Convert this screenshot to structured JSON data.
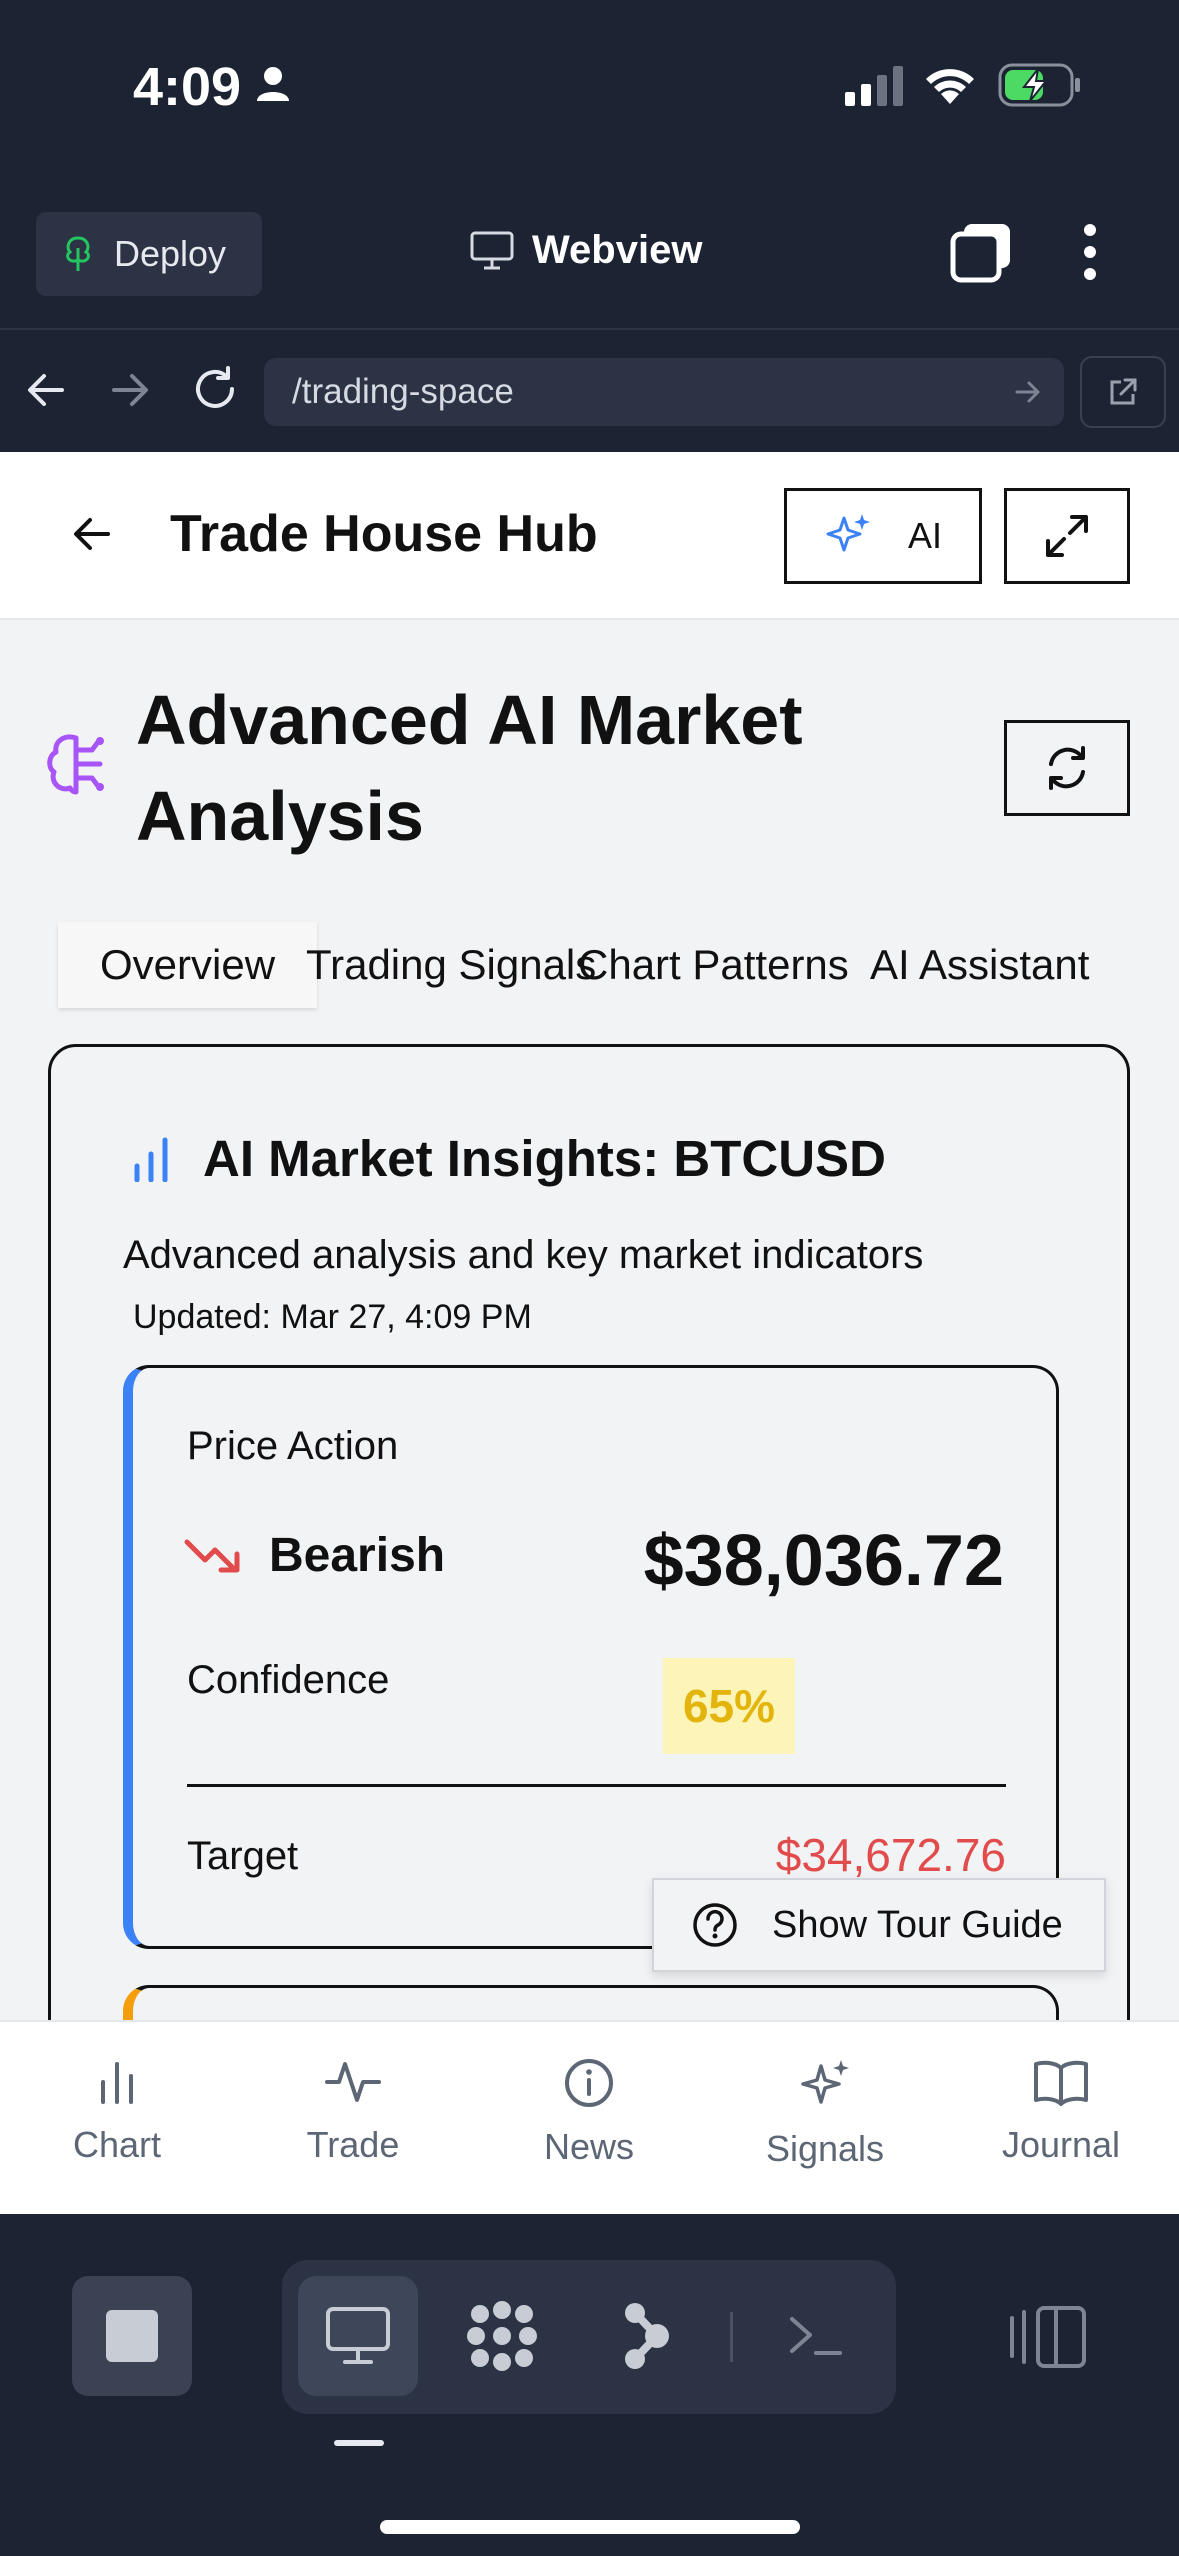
{
  "status": {
    "time": "4:09"
  },
  "topbar": {
    "deploy_label": "Deploy",
    "webview_label": "Webview"
  },
  "urlbar": {
    "url": "/trading-space"
  },
  "header": {
    "title": "Trade House Hub",
    "ai_label": "AI"
  },
  "page": {
    "title": "Advanced AI Market Analysis",
    "tabs": [
      {
        "label": "Overview",
        "active": true
      },
      {
        "label": "Trading Signals",
        "active": false
      },
      {
        "label": "Chart Patterns",
        "active": false
      },
      {
        "label": "AI Assistant",
        "active": false
      }
    ]
  },
  "insights": {
    "title": "AI Market Insights: BTCUSD",
    "description": "Advanced analysis and key market indicators",
    "updated": "Updated: Mar 27, 4:09 PM",
    "price_action": {
      "label": "Price Action",
      "trend": "Bearish",
      "price": "$38,036.72",
      "confidence_label": "Confidence",
      "confidence": "65%",
      "target_label": "Target",
      "target": "$34,672.76"
    }
  },
  "tour_button": "Show Tour Guide",
  "bottom_nav": [
    {
      "label": "Chart",
      "icon": "bar-chart-icon"
    },
    {
      "label": "Trade",
      "icon": "activity-icon"
    },
    {
      "label": "News",
      "icon": "info-icon"
    },
    {
      "label": "Signals",
      "icon": "sparkles-icon"
    },
    {
      "label": "Journal",
      "icon": "book-icon"
    }
  ],
  "colors": {
    "dark_bg": "#1c2333",
    "accent_blue": "#3b82f6",
    "bearish_red": "#e24b4b",
    "confidence_yellow": "#e2b40c",
    "brain_purple": "#a855f7"
  }
}
